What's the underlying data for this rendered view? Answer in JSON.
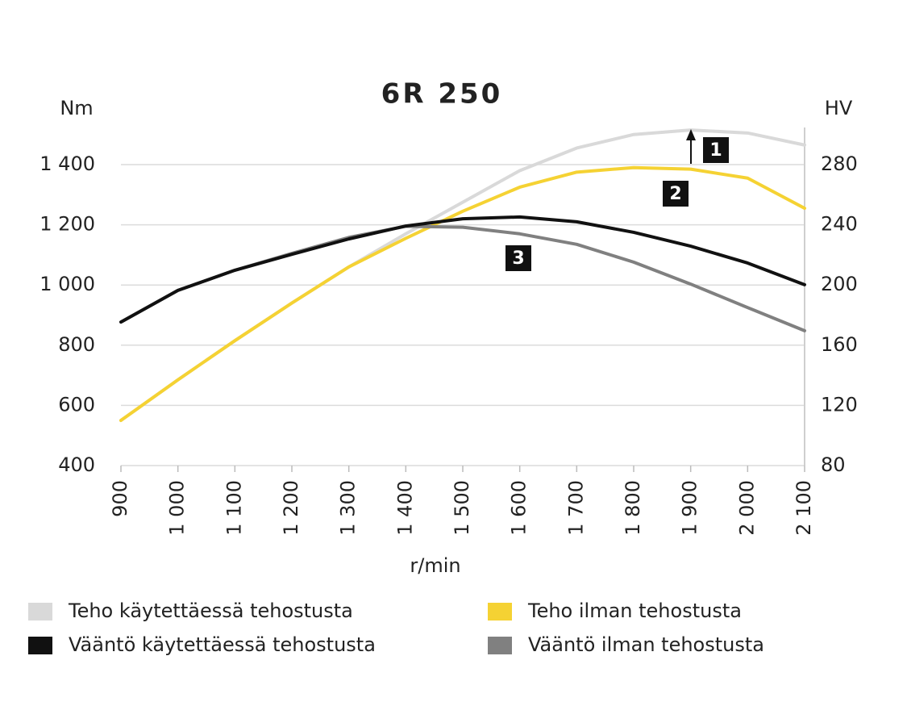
{
  "chart_data": {
    "type": "line",
    "title": "6R 250",
    "y_label": "Nm",
    "y2_label": "HV",
    "x_label": "r/min",
    "x": [
      900,
      1000,
      1100,
      1200,
      1300,
      1400,
      1500,
      1600,
      1700,
      1800,
      1900,
      2000,
      2100
    ],
    "xlim": [
      900,
      2100
    ],
    "xticks": [
      900,
      {
        "value": 1000,
        "label": "1 000"
      },
      {
        "value": 1100,
        "label": "1 100"
      },
      {
        "value": 1200,
        "label": "1 200"
      },
      {
        "value": 1300,
        "label": "1 300"
      },
      {
        "value": 1400,
        "label": "1 400"
      },
      {
        "value": 1500,
        "label": "1 500"
      },
      {
        "value": 1600,
        "label": "1 600"
      },
      {
        "value": 1700,
        "label": "1 700"
      },
      {
        "value": 1800,
        "label": "1 800"
      },
      {
        "value": 1900,
        "label": "1 900"
      },
      {
        "value": 2000,
        "label": "2 000"
      },
      {
        "value": 2100,
        "label": "2 100"
      }
    ],
    "ylim": [
      400,
      1500
    ],
    "yticks": [
      400,
      600,
      800,
      {
        "value": 1000,
        "label": "1 000"
      },
      {
        "value": 1200,
        "label": "1 200"
      },
      {
        "value": 1400,
        "label": "1 400"
      }
    ],
    "y2lim": [
      80,
      300
    ],
    "y2ticks": [
      80,
      120,
      160,
      200,
      240,
      280
    ],
    "grid": true,
    "series": [
      {
        "name": "Teho käytettäessä tehostusta",
        "color": "#d9d9d9",
        "axis": "y2",
        "values": [
          110,
          137,
          163,
          188,
          212,
          234,
          255,
          276,
          291,
          300,
          303,
          301,
          293
        ]
      },
      {
        "name": "Vääntö käytettäessä tehostusta",
        "color": "#111111",
        "values": [
          877,
          982,
          1049,
          1102,
          1153,
          1196,
          1220,
          1226,
          1210,
          1175,
          1129,
          1073,
          1001
        ]
      },
      {
        "name": "Teho ilman tehostusta",
        "color": "#f5d233",
        "axis": "y2",
        "values": [
          110,
          137,
          163,
          188,
          212,
          231,
          249,
          265,
          275,
          278,
          277,
          271,
          251
        ]
      },
      {
        "name": "Vääntö ilman tehostusta",
        "color": "#808080",
        "values": [
          877,
          982,
          1049,
          1105,
          1158,
          1195,
          1192,
          1170,
          1135,
          1076,
          1003,
          925,
          848
        ]
      }
    ],
    "annotations": [
      "1",
      "2",
      "3"
    ]
  }
}
